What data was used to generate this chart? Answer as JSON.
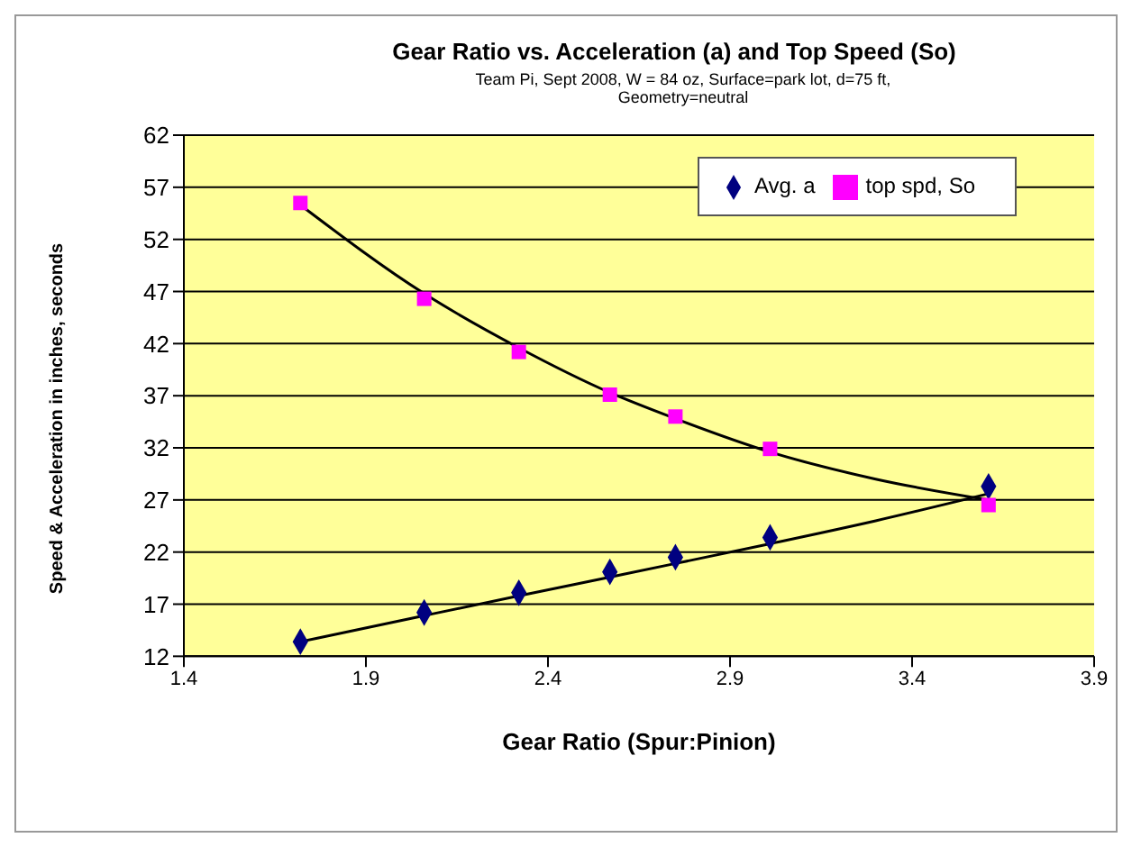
{
  "chart_data": {
    "type": "scatter",
    "title": "Gear Ratio vs. Acceleration (a) and Top Speed (So)",
    "subtitle": "Team Pi, Sept 2008, W = 84 oz, Surface=park lot, d=75 ft, Geometry=neutral",
    "xlabel": "Gear Ratio (Spur:Pinion)",
    "ylabel": "Speed & Acceleration in inches, seconds",
    "x": [
      1.72,
      2.06,
      2.32,
      2.57,
      2.75,
      3.01,
      3.61
    ],
    "series": [
      {
        "name": "Avg. a",
        "color": "#000080",
        "marker": "diamond",
        "values": [
          13.4,
          16.2,
          18.1,
          20.1,
          21.5,
          23.4,
          28.3
        ]
      },
      {
        "name": "top spd, So",
        "color": "#ff00ff",
        "marker": "square",
        "values": [
          55.5,
          46.3,
          41.2,
          37.1,
          35.0,
          31.9,
          26.5
        ]
      },
      {
        "type": "line",
        "color": "#000000",
        "marker": "none",
        "x": [
          1.72,
          2.06,
          2.32,
          2.57,
          2.75,
          3.01,
          3.3,
          3.61
        ],
        "values": [
          13.4,
          15.9,
          17.8,
          19.6,
          20.9,
          22.8,
          25.0,
          27.6
        ]
      },
      {
        "type": "line",
        "color": "#000000",
        "marker": "none",
        "x": [
          1.72,
          2.06,
          2.32,
          2.57,
          2.75,
          3.01,
          3.3,
          3.61
        ],
        "values": [
          55.3,
          46.8,
          41.6,
          37.3,
          34.8,
          31.6,
          29.0,
          27.0
        ]
      }
    ],
    "xlim": [
      1.4,
      3.9
    ],
    "xticks": [
      1.4,
      1.9,
      2.4,
      2.9,
      3.4,
      3.9
    ],
    "ylim": [
      12,
      62
    ],
    "yticks": [
      12,
      17,
      22,
      27,
      32,
      37,
      42,
      47,
      52,
      57,
      62
    ],
    "grid": "y",
    "legend": "top right"
  }
}
